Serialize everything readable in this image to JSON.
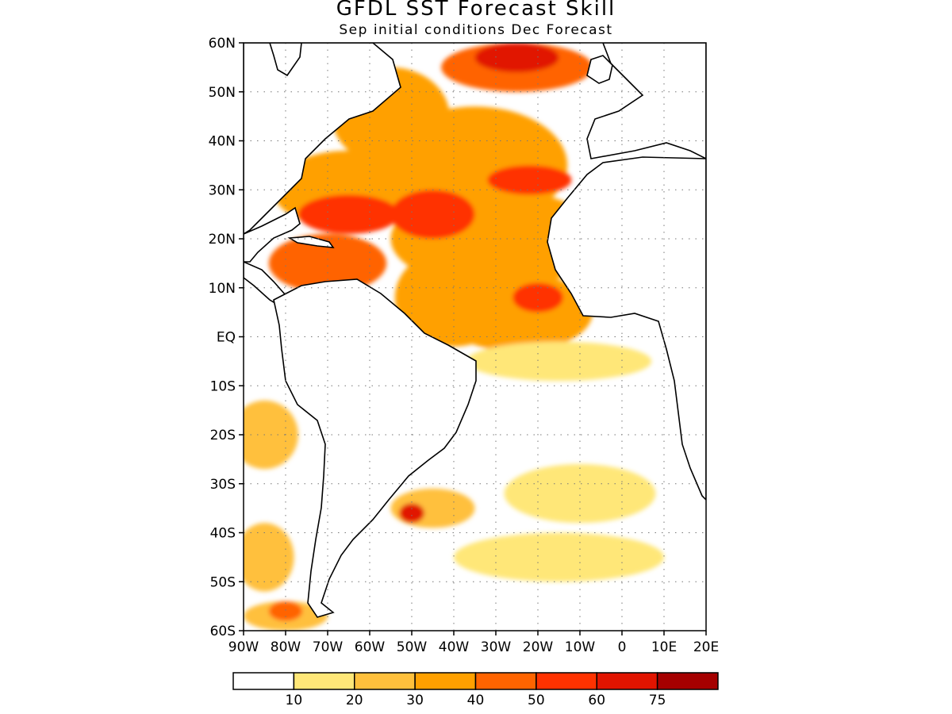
{
  "title": "GFDL SST Forecast Skill",
  "subtitle": "Sep initial conditions  Dec Forecast",
  "lat_ticks": [
    "60N",
    "50N",
    "40N",
    "30N",
    "20N",
    "10N",
    "EQ",
    "10S",
    "20S",
    "30S",
    "40S",
    "50S",
    "60S"
  ],
  "lon_ticks": [
    "90W",
    "80W",
    "70W",
    "60W",
    "50W",
    "40W",
    "30W",
    "20W",
    "10W",
    "0",
    "10E",
    "20E"
  ],
  "map_extent": {
    "lon": [
      -90,
      20
    ],
    "lat": [
      -60,
      60
    ]
  },
  "colorbar": {
    "labels": [
      "10",
      "20",
      "30",
      "40",
      "50",
      "60",
      "75"
    ],
    "colors": [
      "#ffffff",
      "#ffe778",
      "#ffc03c",
      "#ffa000",
      "#ff6400",
      "#ff3200",
      "#e11400",
      "#a50000"
    ]
  },
  "chart_data": {
    "type": "heatmap",
    "title": "GFDL SST Forecast Skill",
    "subtitle": "Sep initial conditions  Dec Forecast",
    "x_range": [
      -90,
      20
    ],
    "y_range": [
      -60,
      60
    ],
    "levels": [
      10,
      20,
      30,
      40,
      50,
      60,
      75
    ],
    "colors": [
      "#ffffff",
      "#ffe778",
      "#ffc03c",
      "#ffa000",
      "#ff6400",
      "#ff3200",
      "#e11400",
      "#a50000"
    ],
    "blobs": [
      {
        "lon": -65,
        "lat": 30,
        "rx": 18,
        "ry": 8,
        "v": 3
      },
      {
        "lon": -55,
        "lat": 45,
        "rx": 14,
        "ry": 10,
        "v": 3
      },
      {
        "lon": -35,
        "lat": 35,
        "rx": 22,
        "ry": 12,
        "v": 3
      },
      {
        "lon": -25,
        "lat": 55,
        "rx": 18,
        "ry": 5,
        "v": 4
      },
      {
        "lon": -30,
        "lat": 20,
        "rx": 25,
        "ry": 10,
        "v": 3
      },
      {
        "lon": -40,
        "lat": 8,
        "rx": 14,
        "ry": 10,
        "v": 3
      },
      {
        "lon": -25,
        "lat": 5,
        "rx": 18,
        "ry": 8,
        "v": 3
      },
      {
        "lon": -70,
        "lat": 15,
        "rx": 14,
        "ry": 6,
        "v": 4
      },
      {
        "lon": -15,
        "lat": -5,
        "rx": 22,
        "ry": 4,
        "v": 1
      },
      {
        "lon": -85,
        "lat": -20,
        "rx": 8,
        "ry": 7,
        "v": 2
      },
      {
        "lon": -85,
        "lat": -45,
        "rx": 7,
        "ry": 7,
        "v": 2
      },
      {
        "lon": -45,
        "lat": -35,
        "rx": 10,
        "ry": 4,
        "v": 2
      },
      {
        "lon": -10,
        "lat": -32,
        "rx": 18,
        "ry": 6,
        "v": 1
      },
      {
        "lon": -15,
        "lat": -45,
        "rx": 25,
        "ry": 5,
        "v": 1
      },
      {
        "lon": -80,
        "lat": -57,
        "rx": 10,
        "ry": 3,
        "v": 2
      },
      {
        "lon": -45,
        "lat": 25,
        "rx": 10,
        "ry": 5,
        "v": 5
      },
      {
        "lon": -65,
        "lat": 25,
        "rx": 12,
        "ry": 4,
        "v": 5
      },
      {
        "lon": -22,
        "lat": 32,
        "rx": 10,
        "ry": 3,
        "v": 5
      },
      {
        "lon": -25,
        "lat": 57,
        "rx": 10,
        "ry": 3,
        "v": 6
      },
      {
        "lon": -20,
        "lat": 8,
        "rx": 6,
        "ry": 3,
        "v": 5
      },
      {
        "lon": -50,
        "lat": -36,
        "rx": 3,
        "ry": 2,
        "v": 6
      },
      {
        "lon": -80,
        "lat": -56,
        "rx": 4,
        "ry": 2,
        "v": 4
      }
    ]
  }
}
